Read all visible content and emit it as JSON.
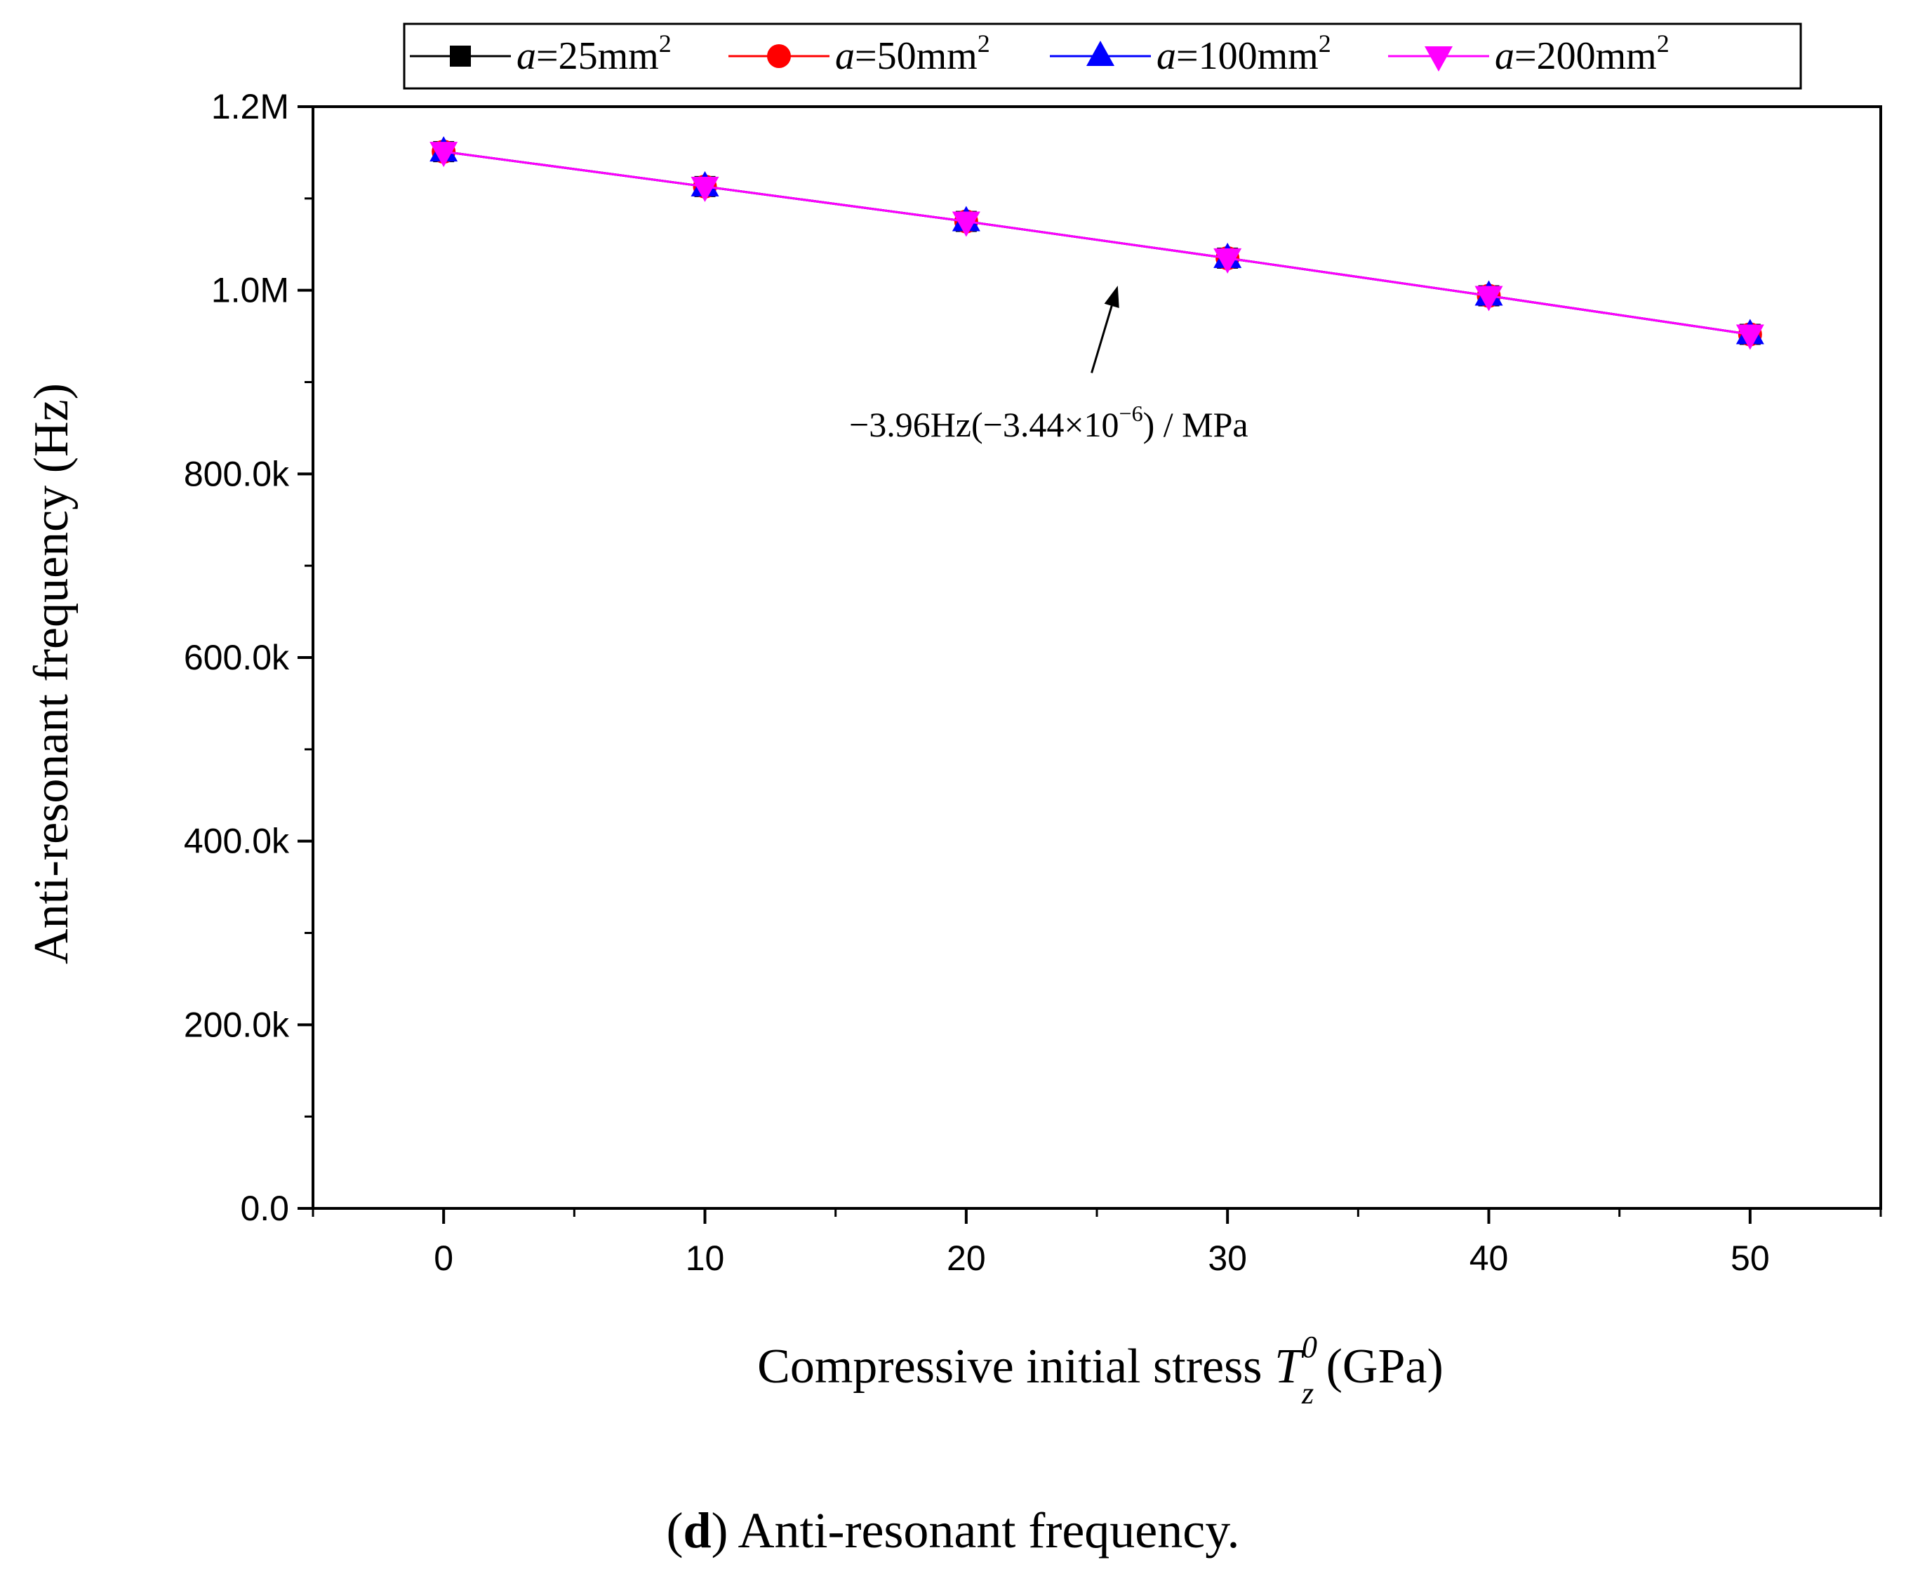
{
  "chart_data": {
    "type": "line",
    "title": "",
    "caption": {
      "letter": "d",
      "text": " Anti-resonant frequency."
    },
    "xlabel": {
      "main": "Compressive initial stress ",
      "symbol": "T",
      "superscript": "0",
      "subscript": "z",
      "unit": " (GPa)"
    },
    "ylabel": "Anti-resonant frequency (Hz)",
    "xlim": [
      -5,
      55
    ],
    "ylim": [
      0,
      1200000
    ],
    "x_ticks": [
      0,
      10,
      20,
      30,
      40,
      50
    ],
    "x_tick_labels": [
      "0",
      "10",
      "20",
      "30",
      "40",
      "50"
    ],
    "y_ticks": [
      0,
      200000,
      400000,
      600000,
      800000,
      1000000,
      1200000
    ],
    "y_tick_labels": [
      "0.0",
      "200.0k",
      "400.0k",
      "600.0k",
      "800.0k",
      "1.0M",
      "1.2M"
    ],
    "x": [
      0,
      10,
      20,
      30,
      40,
      50
    ],
    "series": [
      {
        "name_var": "a",
        "name_rest": "=25mm",
        "name_sup": "2",
        "color": "#000000",
        "marker": "square",
        "values": [
          1151000,
          1113000,
          1075000,
          1035000,
          994000,
          952000
        ]
      },
      {
        "name_var": "a",
        "name_rest": "=50mm",
        "name_sup": "2",
        "color": "#ff0000",
        "marker": "circle",
        "values": [
          1151000,
          1113000,
          1075000,
          1035000,
          994000,
          952000
        ]
      },
      {
        "name_var": "a",
        "name_rest": "=100mm",
        "name_sup": "2",
        "color": "#0000ff",
        "marker": "triangle-up",
        "values": [
          1151000,
          1113000,
          1075000,
          1035000,
          994000,
          952000
        ]
      },
      {
        "name_var": "a",
        "name_rest": "=200mm",
        "name_sup": "2",
        "color": "#ff00ff",
        "marker": "triangle-down",
        "values": [
          1151000,
          1113000,
          1075000,
          1035000,
          994000,
          952000
        ]
      }
    ],
    "annotation": {
      "pre": "−3.96Hz(−3.44×10",
      "sup": "−6",
      "post": ") / MPa",
      "arrow_from": [
        24.8,
        910000
      ],
      "arrow_to": [
        25.8,
        1005000
      ]
    },
    "legend_position": "top",
    "grid": false
  }
}
